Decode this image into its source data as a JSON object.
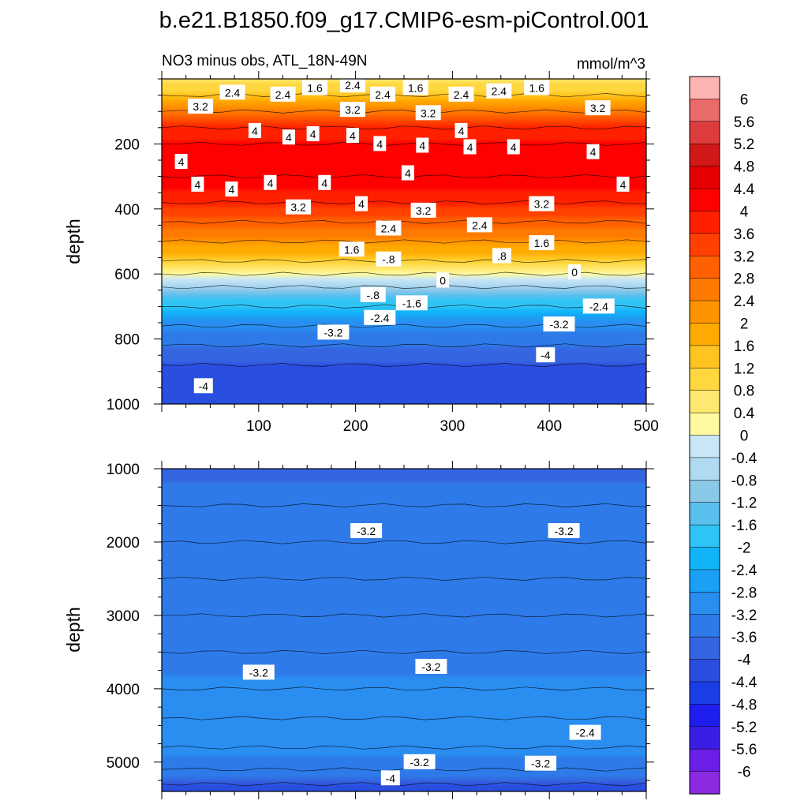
{
  "chart_data": {
    "type": "heatmap",
    "title": "b.e21.B1850.f09_g17.CMIP6-esm-piControl.001",
    "subtitle_left": "NO3 minus obs, ATL_18N-49N",
    "subtitle_right": "mmol/m^3",
    "colors": {
      "levels_fill": [
        "#8a2be2",
        "#6a1ee6",
        "#3a1ee6",
        "#1e1eef",
        "#1a3ee6",
        "#2a4ee0",
        "#3565e0",
        "#2e7ae8",
        "#2a8df0",
        "#1aa0f5",
        "#10b4f8",
        "#30c4f5",
        "#5ac0ee",
        "#8cc8e8",
        "#b0daf2",
        "#c8e6f5",
        "#fffaa0",
        "#ffe870",
        "#ffd840",
        "#ffc420",
        "#ffaa00",
        "#ff9400",
        "#ff7a00",
        "#ff6000",
        "#ff4000",
        "#ff2000",
        "#ff0000",
        "#e40000",
        "#d01818",
        "#dc3c3c",
        "#ea6a6a",
        "#ffb4b4"
      ]
    },
    "panels": [
      {
        "ylabel": "depth",
        "xlim": [
          0,
          500
        ],
        "ylim": [
          0,
          1000
        ],
        "y_inverted": true,
        "xticks": [
          100,
          200,
          300,
          400,
          500
        ],
        "xtick_labels": [
          "100",
          "200",
          "300",
          "400",
          "500"
        ],
        "yticks": [
          200,
          400,
          600,
          800,
          1000
        ],
        "ytick_labels": [
          "200",
          "400",
          "600",
          "800",
          "1000"
        ],
        "depth_profile": [
          {
            "depth": 0,
            "value": 0.6
          },
          {
            "depth": 50,
            "value": 1.4
          },
          {
            "depth": 100,
            "value": 2.6
          },
          {
            "depth": 150,
            "value": 3.6
          },
          {
            "depth": 200,
            "value": 4.1
          },
          {
            "depth": 300,
            "value": 4.2
          },
          {
            "depth": 380,
            "value": 3.8
          },
          {
            "depth": 440,
            "value": 3.0
          },
          {
            "depth": 500,
            "value": 2.2
          },
          {
            "depth": 560,
            "value": 1.2
          },
          {
            "depth": 600,
            "value": 0.1
          },
          {
            "depth": 640,
            "value": -0.8
          },
          {
            "depth": 700,
            "value": -2.0
          },
          {
            "depth": 760,
            "value": -3.0
          },
          {
            "depth": 820,
            "value": -3.6
          },
          {
            "depth": 880,
            "value": -4.0
          },
          {
            "depth": 1000,
            "value": -4.1
          }
        ],
        "contour_labels": [
          {
            "x": 40,
            "depth": 85,
            "text": "3.2"
          },
          {
            "x": 73,
            "depth": 42,
            "text": "2.4"
          },
          {
            "x": 125,
            "depth": 48,
            "text": "2.4"
          },
          {
            "x": 158,
            "depth": 28,
            "text": "1.6"
          },
          {
            "x": 197,
            "depth": 20,
            "text": "2.4"
          },
          {
            "x": 228,
            "depth": 48,
            "text": "2.4"
          },
          {
            "x": 262,
            "depth": 28,
            "text": "1.6"
          },
          {
            "x": 309,
            "depth": 48,
            "text": "2.4"
          },
          {
            "x": 348,
            "depth": 38,
            "text": "2.4"
          },
          {
            "x": 387,
            "depth": 28,
            "text": "1.6"
          },
          {
            "x": 450,
            "depth": 90,
            "text": "3.2"
          },
          {
            "x": 197,
            "depth": 95,
            "text": "3.2"
          },
          {
            "x": 275,
            "depth": 105,
            "text": "3.2"
          },
          {
            "x": 96,
            "depth": 160,
            "text": "4"
          },
          {
            "x": 131,
            "depth": 180,
            "text": "4"
          },
          {
            "x": 156,
            "depth": 170,
            "text": "4"
          },
          {
            "x": 197,
            "depth": 175,
            "text": "4"
          },
          {
            "x": 225,
            "depth": 200,
            "text": "4"
          },
          {
            "x": 269,
            "depth": 205,
            "text": "4"
          },
          {
            "x": 309,
            "depth": 160,
            "text": "4"
          },
          {
            "x": 318,
            "depth": 210,
            "text": "4"
          },
          {
            "x": 363,
            "depth": 210,
            "text": "4"
          },
          {
            "x": 445,
            "depth": 225,
            "text": "4"
          },
          {
            "x": 20,
            "depth": 255,
            "text": "4"
          },
          {
            "x": 37,
            "depth": 325,
            "text": "4"
          },
          {
            "x": 72,
            "depth": 340,
            "text": "4"
          },
          {
            "x": 112,
            "depth": 320,
            "text": "4"
          },
          {
            "x": 168,
            "depth": 320,
            "text": "4"
          },
          {
            "x": 254,
            "depth": 290,
            "text": "4"
          },
          {
            "x": 476,
            "depth": 325,
            "text": "4"
          },
          {
            "x": 141,
            "depth": 395,
            "text": "3.2"
          },
          {
            "x": 206,
            "depth": 385,
            "text": "4"
          },
          {
            "x": 270,
            "depth": 405,
            "text": "3.2"
          },
          {
            "x": 392,
            "depth": 385,
            "text": "3.2"
          },
          {
            "x": 234,
            "depth": 460,
            "text": "2.4"
          },
          {
            "x": 328,
            "depth": 450,
            "text": "2.4"
          },
          {
            "x": 196,
            "depth": 525,
            "text": "1.6"
          },
          {
            "x": 234,
            "depth": 555,
            "text": "-.8"
          },
          {
            "x": 351,
            "depth": 545,
            "text": ".8"
          },
          {
            "x": 392,
            "depth": 505,
            "text": "1.6"
          },
          {
            "x": 290,
            "depth": 620,
            "text": "0"
          },
          {
            "x": 426,
            "depth": 595,
            "text": "0"
          },
          {
            "x": 218,
            "depth": 665,
            "text": "-.8"
          },
          {
            "x": 258,
            "depth": 690,
            "text": "-1.6"
          },
          {
            "x": 225,
            "depth": 735,
            "text": "-2.4"
          },
          {
            "x": 451,
            "depth": 700,
            "text": "-2.4"
          },
          {
            "x": 177,
            "depth": 780,
            "text": "-3.2"
          },
          {
            "x": 410,
            "depth": 755,
            "text": "-3.2"
          },
          {
            "x": 396,
            "depth": 850,
            "text": "-4"
          },
          {
            "x": 43,
            "depth": 945,
            "text": "-4"
          }
        ]
      },
      {
        "ylabel": "depth",
        "xlim": [
          0,
          500
        ],
        "ylim": [
          1000,
          5400
        ],
        "y_inverted": true,
        "yticks": [
          1000,
          2000,
          3000,
          4000,
          5000
        ],
        "ytick_labels": [
          "1000",
          "2000",
          "3000",
          "4000",
          "5000"
        ],
        "depth_profile": [
          {
            "depth": 1000,
            "value": -3.7
          },
          {
            "depth": 1500,
            "value": -3.4
          },
          {
            "depth": 2000,
            "value": -3.4
          },
          {
            "depth": 2500,
            "value": -3.6
          },
          {
            "depth": 3000,
            "value": -3.6
          },
          {
            "depth": 3500,
            "value": -3.4
          },
          {
            "depth": 4000,
            "value": -3.1
          },
          {
            "depth": 4400,
            "value": -2.8
          },
          {
            "depth": 4800,
            "value": -3.0
          },
          {
            "depth": 5100,
            "value": -3.4
          },
          {
            "depth": 5300,
            "value": -3.9
          },
          {
            "depth": 5400,
            "value": -4.3
          }
        ],
        "contour_labels": [
          {
            "x": 211,
            "depth": 1850,
            "text": "-3.2"
          },
          {
            "x": 415,
            "depth": 1850,
            "text": "-3.2"
          },
          {
            "x": 100,
            "depth": 3780,
            "text": "-3.2"
          },
          {
            "x": 278,
            "depth": 3700,
            "text": "-3.2"
          },
          {
            "x": 437,
            "depth": 4600,
            "text": "-2.4"
          },
          {
            "x": 266,
            "depth": 5000,
            "text": "-3.2"
          },
          {
            "x": 391,
            "depth": 5020,
            "text": "-3.2"
          },
          {
            "x": 236,
            "depth": 5220,
            "text": "-4"
          }
        ]
      }
    ],
    "colorbar": {
      "labels": [
        "6",
        "5.6",
        "5.2",
        "4.8",
        "4.4",
        "4",
        "3.6",
        "3.2",
        "2.8",
        "2.4",
        "2",
        "1.6",
        "1.2",
        "0.8",
        "0.4",
        "0",
        "-0.4",
        "-0.8",
        "-1.2",
        "-1.6",
        "-2",
        "-2.4",
        "-2.8",
        "-3.2",
        "-3.6",
        "-4",
        "-4.4",
        "-4.8",
        "-5.2",
        "-5.6",
        "-6"
      ]
    }
  }
}
